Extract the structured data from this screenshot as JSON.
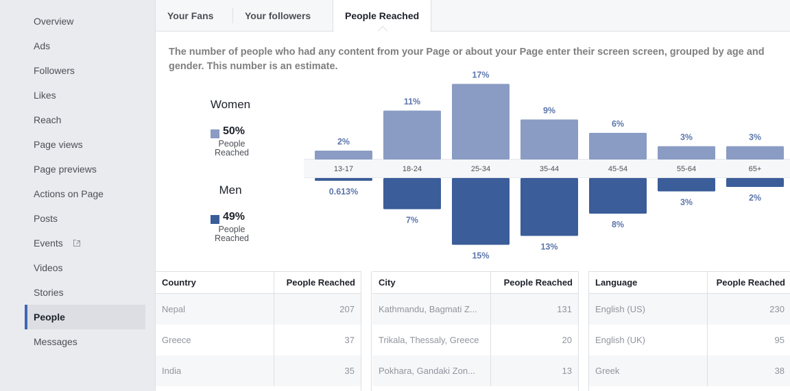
{
  "sidebar": {
    "items": [
      {
        "label": "Overview",
        "active": false
      },
      {
        "label": "Ads",
        "active": false
      },
      {
        "label": "Followers",
        "active": false
      },
      {
        "label": "Likes",
        "active": false
      },
      {
        "label": "Reach",
        "active": false
      },
      {
        "label": "Page views",
        "active": false
      },
      {
        "label": "Page previews",
        "active": false
      },
      {
        "label": "Actions on Page",
        "active": false
      },
      {
        "label": "Posts",
        "active": false
      },
      {
        "label": "Events",
        "active": false,
        "icon": "external-link-icon"
      },
      {
        "label": "Videos",
        "active": false
      },
      {
        "label": "Stories",
        "active": false
      },
      {
        "label": "People",
        "active": true
      },
      {
        "label": "Messages",
        "active": false
      }
    ]
  },
  "tabs": [
    {
      "label": "Your Fans",
      "active": false
    },
    {
      "label": "Your followers",
      "active": false
    },
    {
      "label": "People Reached",
      "active": true
    }
  ],
  "description": "The number of people who had any content from your Page or about your Page enter their screen screen, grouped by age and gender. This number is an estimate.",
  "legend": {
    "women": {
      "title": "Women",
      "percent": "50%",
      "sub1": "People",
      "sub2": "Reached",
      "color": "#8a9cc3"
    },
    "men": {
      "title": "Men",
      "percent": "49%",
      "sub1": "People",
      "sub2": "Reached",
      "color": "#3b5d99"
    }
  },
  "chart_data": {
    "type": "bar",
    "categories": [
      "13-17",
      "18-24",
      "25-34",
      "35-44",
      "45-54",
      "55-64",
      "65+"
    ],
    "series": [
      {
        "name": "Women",
        "values": [
          2,
          11,
          17,
          9,
          6,
          3,
          3
        ],
        "labels": [
          "2%",
          "11%",
          "17%",
          "9%",
          "6%",
          "3%",
          "3%"
        ],
        "color": "#8a9cc3"
      },
      {
        "name": "Men",
        "values": [
          0.613,
          7,
          15,
          13,
          8,
          3,
          2
        ],
        "labels": [
          "0.613%",
          "7%",
          "15%",
          "13%",
          "8%",
          "3%",
          "2%"
        ],
        "color": "#3b5d99"
      }
    ],
    "label_color": "#5c76ab"
  },
  "tables": {
    "country": {
      "headers": [
        "Country",
        "People Reached"
      ],
      "rows": [
        [
          "Nepal",
          "207"
        ],
        [
          "Greece",
          "37"
        ],
        [
          "India",
          "35"
        ]
      ]
    },
    "city": {
      "headers": [
        "City",
        "People Reached"
      ],
      "rows": [
        [
          "Kathmandu, Bagmati Z...",
          "131"
        ],
        [
          "Trikala, Thessaly, Greece",
          "20"
        ],
        [
          "Pokhara, Gandaki Zon...",
          "13"
        ]
      ]
    },
    "language": {
      "headers": [
        "Language",
        "People Reached"
      ],
      "rows": [
        [
          "English (US)",
          "230"
        ],
        [
          "English (UK)",
          "95"
        ],
        [
          "Greek",
          "38"
        ]
      ]
    }
  }
}
